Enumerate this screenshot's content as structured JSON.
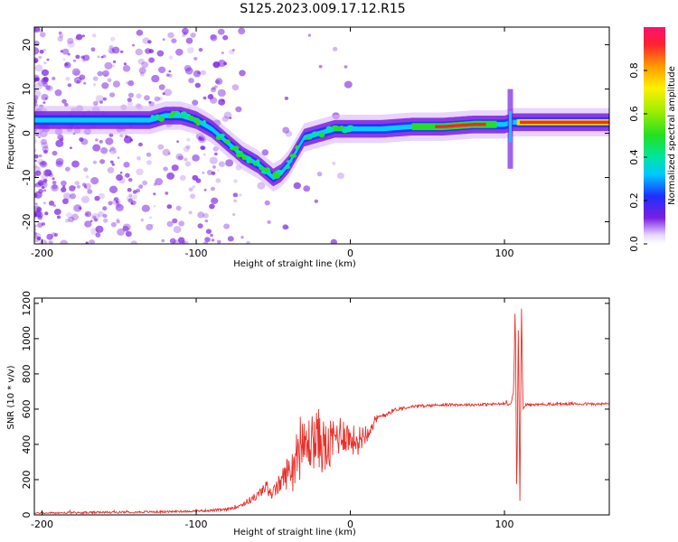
{
  "title": "S125.2023.009.17.12.R15",
  "chart_data": [
    {
      "type": "heatmap",
      "xlabel": "Height of straight line (km)",
      "ylabel": "Frequency (Hz)",
      "xlim": [
        -205,
        168
      ],
      "ylim": [
        -25,
        24
      ],
      "x_ticks": [
        -200,
        -100,
        0,
        100
      ],
      "y_ticks": [
        -20,
        -10,
        0,
        10,
        20
      ],
      "colorbar": {
        "label": "Normalized spectral amplitude",
        "ticks": [
          0.0,
          0.2,
          0.4,
          0.6,
          0.8
        ],
        "range": [
          0,
          1
        ]
      },
      "ridge": {
        "x": [
          -205,
          -190,
          -175,
          -160,
          -150,
          -140,
          -130,
          -120,
          -110,
          -100,
          -90,
          -80,
          -70,
          -60,
          -50,
          -45,
          -40,
          -35,
          -30,
          -20,
          -10,
          0,
          10,
          20,
          40,
          60,
          80,
          100,
          105,
          110,
          130,
          150,
          168
        ],
        "freq": [
          3,
          3,
          3,
          3,
          3,
          3,
          3,
          4,
          4,
          3,
          1,
          -2,
          -5,
          -7,
          -10,
          -9,
          -7,
          -4,
          -1,
          0,
          1,
          1,
          1,
          1,
          1.5,
          1.5,
          2,
          2,
          2.5,
          2.5,
          2.5,
          2.5,
          2.5
        ]
      },
      "colors": {
        "noise": "#7a1fe0"
      }
    },
    {
      "type": "line",
      "xlabel": "Height of straight line (km)",
      "ylabel": "SNR (10 * v/v)",
      "xlim": [
        -205,
        168
      ],
      "ylim": [
        0,
        1230
      ],
      "x_ticks": [
        -200,
        -100,
        0,
        100
      ],
      "y_ticks": [
        0,
        200,
        400,
        600,
        800,
        1000,
        1200
      ],
      "series": [
        {
          "color": "#e8302a",
          "x": [
            -205,
            -180,
            -150,
            -120,
            -100,
            -80,
            -70,
            -60,
            -55,
            -50,
            -45,
            -40,
            -35,
            -30,
            -25,
            -20,
            -15,
            -10,
            -5,
            0,
            5,
            10,
            15,
            20,
            25,
            30,
            40,
            50,
            60,
            70,
            80,
            90,
            100,
            104,
            106,
            107,
            108,
            109,
            110,
            111,
            112,
            114,
            120,
            130,
            140,
            150,
            160,
            168
          ],
          "y": [
            10,
            12,
            15,
            18,
            22,
            30,
            60,
            110,
            160,
            120,
            190,
            250,
            320,
            380,
            420,
            430,
            360,
            440,
            470,
            430,
            420,
            470,
            520,
            560,
            580,
            600,
            615,
            620,
            625,
            625,
            625,
            628,
            630,
            630,
            700,
            1220,
            60,
            1100,
            80,
            1200,
            600,
            625,
            625,
            628,
            630,
            630,
            628,
            630
          ],
          "noise": [
            4,
            6,
            6,
            6,
            6,
            8,
            15,
            25,
            40,
            40,
            60,
            100,
            140,
            160,
            160,
            180,
            150,
            130,
            110,
            90,
            80,
            70,
            40,
            20,
            15,
            10,
            8,
            8,
            8,
            8,
            8,
            8,
            8,
            8,
            0,
            0,
            0,
            0,
            0,
            0,
            0,
            8,
            8,
            8,
            8,
            8,
            8,
            8
          ]
        }
      ]
    }
  ]
}
